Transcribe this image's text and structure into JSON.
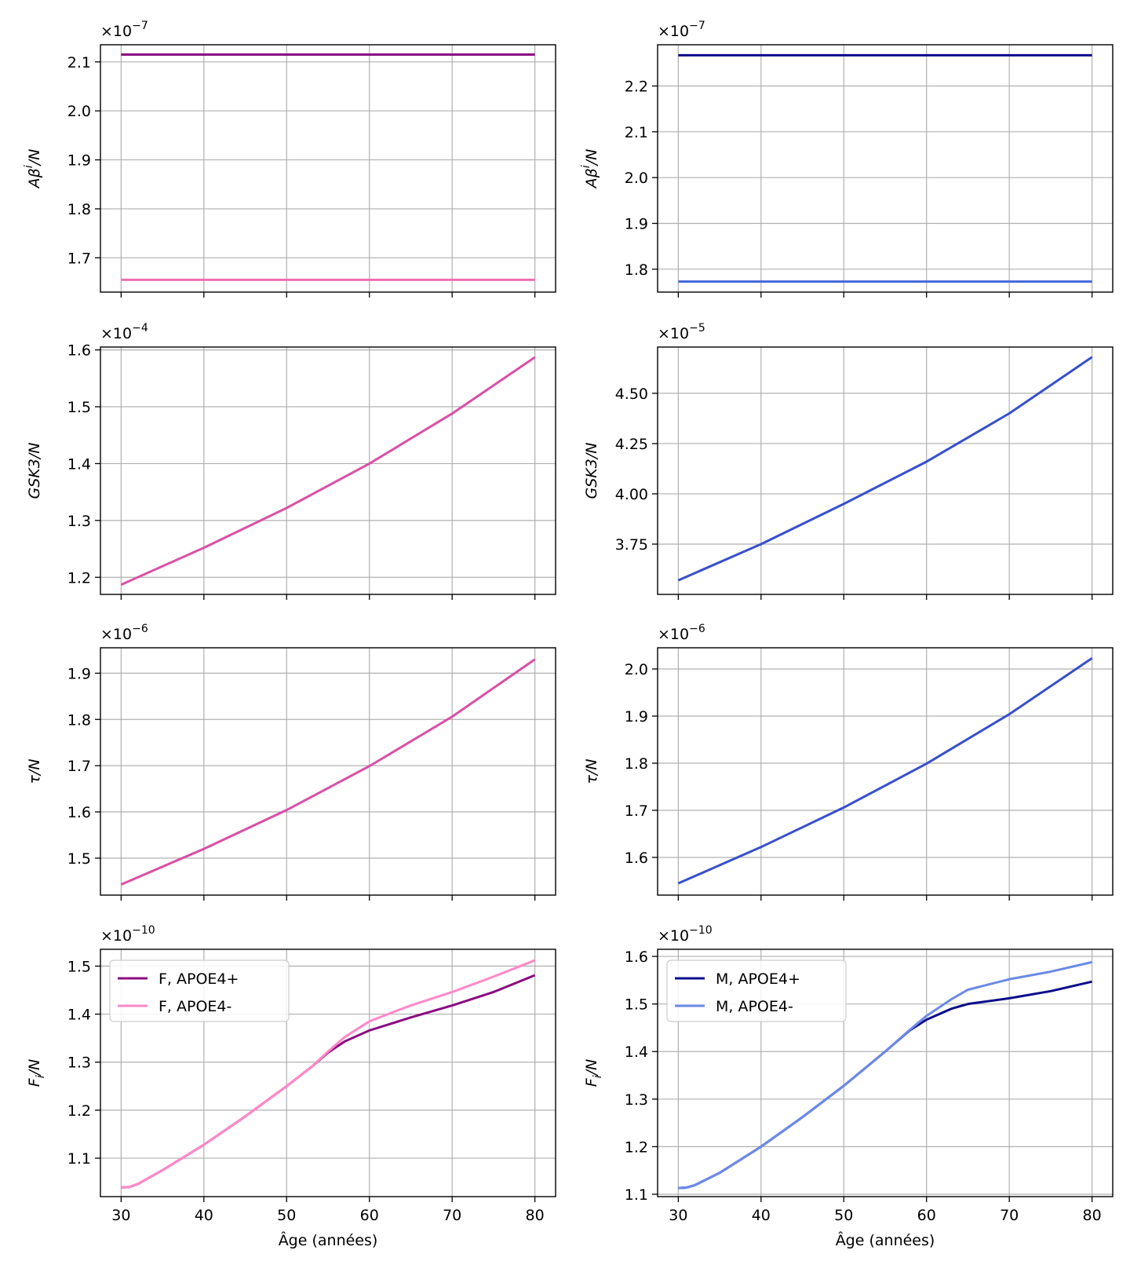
{
  "chart_data": [
    {
      "type": "line",
      "panel": "F Abeta",
      "ylabel_main": "Aβ",
      "ylabel_sup": "i",
      "ylabel_tail": "/N",
      "multiplier": "×10",
      "exponent": "−7",
      "xlim": [
        27.5,
        82.5
      ],
      "ylim": [
        1.63,
        2.135
      ],
      "xticks": [
        "30",
        "40",
        "50",
        "60",
        "70",
        "80"
      ],
      "yticks": [
        1.7,
        1.8,
        1.9,
        2.0,
        2.1
      ],
      "ytick_labels": [
        "1.7",
        "1.8",
        "1.9",
        "2.0",
        "2.1"
      ],
      "grid": true,
      "show_xticklabels": false,
      "series": [
        {
          "color": "#8b0a82",
          "x": [
            30,
            80
          ],
          "y": [
            2.115,
            2.115
          ]
        },
        {
          "color": "#f26bb5",
          "x": [
            30,
            80
          ],
          "y": [
            1.655,
            1.655
          ]
        }
      ]
    },
    {
      "type": "line",
      "panel": "M Abeta",
      "ylabel_main": "Aβ",
      "ylabel_sup": "i",
      "ylabel_tail": "/N",
      "multiplier": "×10",
      "exponent": "−7",
      "xlim": [
        27.5,
        82.5
      ],
      "ylim": [
        1.75,
        2.29
      ],
      "xticks": [
        "30",
        "40",
        "50",
        "60",
        "70",
        "80"
      ],
      "yticks": [
        1.8,
        1.9,
        2.0,
        2.1,
        2.2
      ],
      "ytick_labels": [
        "1.8",
        "1.9",
        "2.0",
        "2.1",
        "2.2"
      ],
      "grid": true,
      "show_xticklabels": false,
      "series": [
        {
          "color": "#0a0a8c",
          "x": [
            30,
            80
          ],
          "y": [
            2.267,
            2.267
          ]
        },
        {
          "color": "#4468d9",
          "x": [
            30,
            80
          ],
          "y": [
            1.773,
            1.773
          ]
        }
      ]
    },
    {
      "type": "line",
      "panel": "F GSK3",
      "ylabel_main": "GSK3",
      "ylabel_sup": "",
      "ylabel_tail": "/N",
      "multiplier": "×10",
      "exponent": "−4",
      "xlim": [
        27.5,
        82.5
      ],
      "ylim": [
        1.17,
        1.605
      ],
      "xticks": [
        "30",
        "40",
        "50",
        "60",
        "70",
        "80"
      ],
      "yticks": [
        1.2,
        1.3,
        1.4,
        1.5,
        1.6
      ],
      "ytick_labels": [
        "1.2",
        "1.3",
        "1.4",
        "1.5",
        "1.6"
      ],
      "grid": true,
      "show_xticklabels": false,
      "series": [
        {
          "color": "#d94fa6",
          "x": [
            30,
            40,
            50,
            60,
            70,
            80
          ],
          "y": [
            1.187,
            1.252,
            1.322,
            1.4,
            1.488,
            1.587
          ]
        }
      ]
    },
    {
      "type": "line",
      "panel": "M GSK3",
      "ylabel_main": "GSK3",
      "ylabel_sup": "",
      "ylabel_tail": "/N",
      "multiplier": "×10",
      "exponent": "−5",
      "xlim": [
        27.5,
        82.5
      ],
      "ylim": [
        3.5,
        4.73
      ],
      "xticks": [
        "30",
        "40",
        "50",
        "60",
        "70",
        "80"
      ],
      "yticks": [
        3.75,
        4.0,
        4.25,
        4.5
      ],
      "ytick_labels": [
        "3.75",
        "4.00",
        "4.25",
        "4.50"
      ],
      "grid": true,
      "show_xticklabels": false,
      "series": [
        {
          "color": "#3650cc",
          "x": [
            30,
            40,
            50,
            60,
            70,
            80
          ],
          "y": [
            3.57,
            3.75,
            3.95,
            4.16,
            4.4,
            4.68
          ]
        }
      ]
    },
    {
      "type": "line",
      "panel": "F tau",
      "ylabel_main": "τ",
      "ylabel_sup": "",
      "ylabel_tail": "/N",
      "multiplier": "×10",
      "exponent": "−6",
      "xlim": [
        27.5,
        82.5
      ],
      "ylim": [
        1.42,
        1.955
      ],
      "xticks": [
        "30",
        "40",
        "50",
        "60",
        "70",
        "80"
      ],
      "yticks": [
        1.5,
        1.6,
        1.7,
        1.8,
        1.9
      ],
      "ytick_labels": [
        "1.5",
        "1.6",
        "1.7",
        "1.8",
        "1.9"
      ],
      "grid": true,
      "show_xticklabels": false,
      "series": [
        {
          "color": "#d94fa6",
          "x": [
            30,
            40,
            50,
            60,
            70,
            80
          ],
          "y": [
            1.443,
            1.52,
            1.604,
            1.699,
            1.806,
            1.93
          ]
        }
      ]
    },
    {
      "type": "line",
      "panel": "M tau",
      "ylabel_main": "τ",
      "ylabel_sup": "",
      "ylabel_tail": "/N",
      "multiplier": "×10",
      "exponent": "−6",
      "xlim": [
        27.5,
        82.5
      ],
      "ylim": [
        1.52,
        2.045
      ],
      "xticks": [
        "30",
        "40",
        "50",
        "60",
        "70",
        "80"
      ],
      "yticks": [
        1.6,
        1.7,
        1.8,
        1.9,
        2.0
      ],
      "ytick_labels": [
        "1.6",
        "1.7",
        "1.8",
        "1.9",
        "2.0"
      ],
      "grid": true,
      "show_xticklabels": false,
      "series": [
        {
          "color": "#3650cc",
          "x": [
            30,
            40,
            50,
            60,
            70,
            80
          ],
          "y": [
            1.545,
            1.622,
            1.706,
            1.799,
            1.904,
            2.023
          ]
        }
      ]
    },
    {
      "type": "line",
      "panel": "F Fi",
      "ylabel_main": "F",
      "ylabel_sub": "i",
      "ylabel_tail": "/N",
      "multiplier": "×10",
      "exponent": "−10",
      "xlim": [
        27.5,
        82.5
      ],
      "ylim": [
        1.02,
        1.535
      ],
      "xticks": [
        "30",
        "40",
        "50",
        "60",
        "70",
        "80"
      ],
      "yticks": [
        1.1,
        1.2,
        1.3,
        1.4,
        1.5
      ],
      "ytick_labels": [
        "1.1",
        "1.2",
        "1.3",
        "1.4",
        "1.5"
      ],
      "grid": true,
      "show_xticklabels": true,
      "xlabel": "Âge (années)",
      "legend_position": "upper-left",
      "series": [
        {
          "name": "F, APOE4+",
          "color": "#8b0a82",
          "x": [
            30,
            31,
            32,
            35,
            40,
            45,
            50,
            53,
            55,
            57,
            60,
            65,
            70,
            75,
            80
          ],
          "y": [
            1.039,
            1.04,
            1.046,
            1.075,
            1.128,
            1.187,
            1.25,
            1.29,
            1.32,
            1.343,
            1.366,
            1.393,
            1.418,
            1.446,
            1.481
          ]
        },
        {
          "name": "F, APOE4-",
          "color": "#ff88c8",
          "x": [
            30,
            31,
            32,
            35,
            40,
            45,
            50,
            53,
            55,
            57,
            60,
            63,
            65,
            70,
            75,
            80
          ],
          "y": [
            1.039,
            1.04,
            1.046,
            1.075,
            1.128,
            1.187,
            1.25,
            1.29,
            1.322,
            1.352,
            1.385,
            1.405,
            1.418,
            1.446,
            1.478,
            1.512
          ]
        }
      ]
    },
    {
      "type": "line",
      "panel": "M Fi",
      "ylabel_main": "F",
      "ylabel_sub": "i",
      "ylabel_tail": "/N",
      "multiplier": "×10",
      "exponent": "−10",
      "xlim": [
        27.5,
        82.5
      ],
      "ylim": [
        1.095,
        1.615
      ],
      "xticks": [
        "30",
        "40",
        "50",
        "60",
        "70",
        "80"
      ],
      "yticks": [
        1.1,
        1.2,
        1.3,
        1.4,
        1.5,
        1.6
      ],
      "ytick_labels": [
        "1.1",
        "1.2",
        "1.3",
        "1.4",
        "1.5",
        "1.6"
      ],
      "grid": true,
      "show_xticklabels": true,
      "xlabel": "Âge (années)",
      "legend_position": "upper-left",
      "series": [
        {
          "name": "M, APOE4+",
          "color": "#0a0a8c",
          "x": [
            30,
            31,
            32,
            35,
            40,
            45,
            50,
            55,
            58,
            60,
            63,
            65,
            70,
            75,
            80
          ],
          "y": [
            1.113,
            1.114,
            1.119,
            1.145,
            1.2,
            1.262,
            1.328,
            1.4,
            1.445,
            1.467,
            1.49,
            1.5,
            1.512,
            1.527,
            1.547
          ]
        },
        {
          "name": "M, APOE4-",
          "color": "#6b8ae6",
          "x": [
            30,
            31,
            32,
            35,
            40,
            45,
            50,
            55,
            58,
            60,
            63,
            65,
            70,
            75,
            80
          ],
          "y": [
            1.113,
            1.114,
            1.119,
            1.145,
            1.2,
            1.262,
            1.328,
            1.4,
            1.446,
            1.475,
            1.51,
            1.53,
            1.552,
            1.568,
            1.588
          ]
        }
      ]
    }
  ]
}
